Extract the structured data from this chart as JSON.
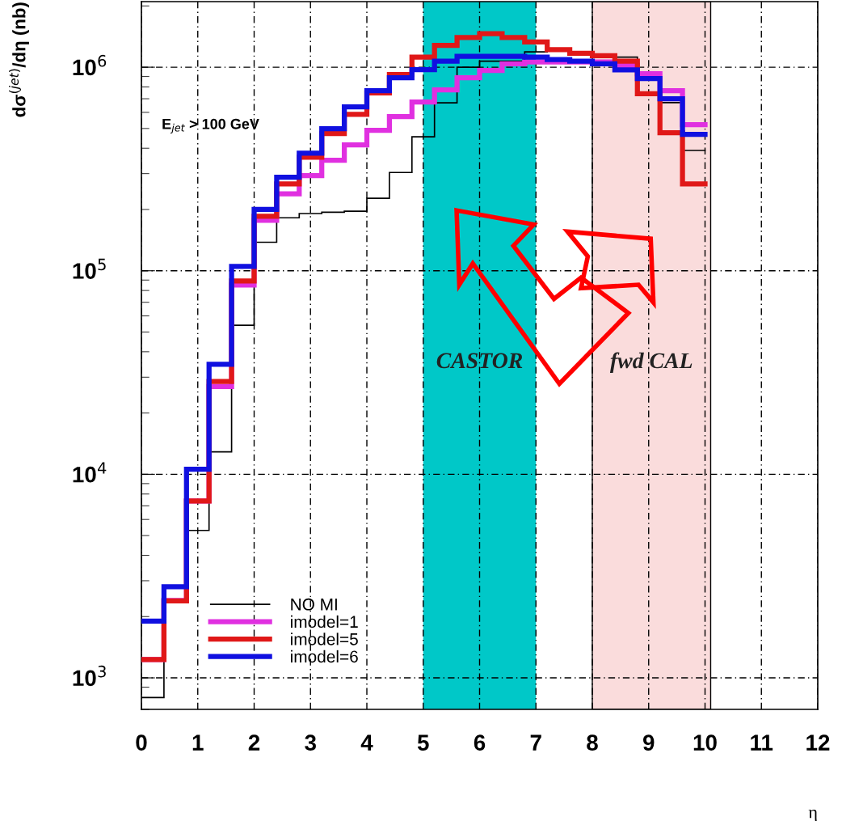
{
  "chart_data": {
    "type": "histogram",
    "ylabel": "dσ$^{(jet)}$/dη (nb)",
    "xlabel": "η",
    "annotations": [
      "E$_{jet}$ > 100 GeV"
    ],
    "bins": [
      0,
      0.4,
      0.8,
      1.2,
      1.6,
      2.0,
      2.4,
      2.8,
      3.2,
      3.6,
      4.0,
      4.4,
      4.8,
      5.2,
      5.6,
      6.0,
      6.4,
      6.8,
      7.2,
      7.6,
      8.0,
      8.4,
      8.8,
      9.2,
      9.6,
      10.0
    ],
    "series": [
      {
        "name": "NO MI",
        "color": "#000000",
        "values": [
          800,
          2400,
          5300,
          12900,
          54000,
          138000,
          182000,
          191000,
          194000,
          196000,
          227000,
          304000,
          455000,
          668000,
          1000000,
          1070000,
          1070000,
          1190000,
          1200000,
          1190000,
          1160000,
          1120000,
          880000,
          670000,
          390000
        ]
      },
      {
        "name": "imodel=1",
        "color": "#e030e0",
        "values": [
          1230,
          2400,
          7400,
          27000,
          85000,
          177000,
          239000,
          293000,
          349000,
          415000,
          490000,
          572000,
          674000,
          774000,
          887000,
          964000,
          1040000,
          1060000,
          1060000,
          1060000,
          1060000,
          1020000,
          930000,
          767000,
          522000
        ]
      },
      {
        "name": "imodel=5",
        "color": "#e01818",
        "values": [
          1230,
          2390,
          7400,
          28600,
          89000,
          185000,
          267000,
          361000,
          472000,
          587000,
          747000,
          921000,
          1120000,
          1280000,
          1400000,
          1460000,
          1400000,
          1330000,
          1220000,
          1170000,
          1140000,
          1070000,
          740000,
          476000,
          267000
        ]
      },
      {
        "name": "imodel=6",
        "color": "#1010e0",
        "values": [
          1900,
          2800,
          10600,
          34700,
          105000,
          200000,
          288000,
          378000,
          499000,
          638000,
          767000,
          887000,
          973000,
          1070000,
          1130000,
          1130000,
          1130000,
          1120000,
          1090000,
          1070000,
          1040000,
          970000,
          880000,
          700000,
          468000
        ]
      }
    ],
    "bands": [
      {
        "axis": "x",
        "from": 5,
        "to": 7,
        "label": "CASTOR",
        "color": "#00c8c8"
      },
      {
        "axis": "x",
        "from": 8,
        "to": 10.1,
        "label": "fwd CAL",
        "color": "#fadcdc"
      }
    ],
    "log": "y",
    "xlim": [
      0,
      12
    ],
    "ylim": [
      700,
      2100000
    ],
    "xticks": [
      0,
      1,
      2,
      3,
      4,
      5,
      6,
      7,
      8,
      9,
      10,
      11,
      12
    ],
    "yticks": [
      {
        "value": 1000,
        "label": "10$^{3}$"
      },
      {
        "value": 10000,
        "label": "10$^{4}$"
      },
      {
        "value": 100000,
        "label": "10$^{5}$"
      },
      {
        "value": 1000000,
        "label": "10$^{6}$"
      }
    ],
    "grid": true,
    "legend": "bottom left"
  }
}
